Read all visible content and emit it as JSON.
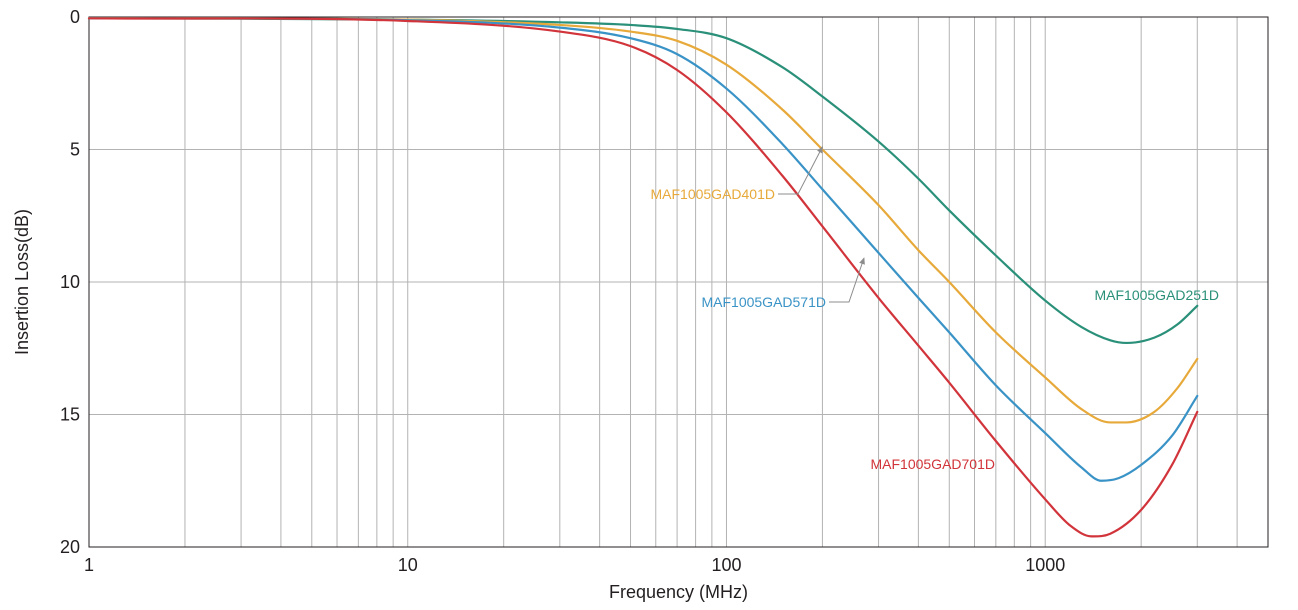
{
  "chart_data": {
    "type": "line",
    "title": "",
    "xlabel": "Frequency (MHz)",
    "ylabel": "Insertion Loss(dB)",
    "x_scale": "log",
    "xlim": [
      1,
      5000
    ],
    "ylim": [
      0,
      20
    ],
    "y_inverted": true,
    "grid": true,
    "x_ticks": [
      {
        "value": 1,
        "label": "1"
      },
      {
        "value": 10,
        "label": "10"
      },
      {
        "value": 100,
        "label": "100"
      },
      {
        "value": 1000,
        "label": "1000"
      }
    ],
    "y_ticks": [
      {
        "value": 0,
        "label": "0"
      },
      {
        "value": 5,
        "label": "5"
      },
      {
        "value": 10,
        "label": "10"
      },
      {
        "value": 15,
        "label": "15"
      },
      {
        "value": 20,
        "label": "20"
      }
    ],
    "series": [
      {
        "name": "MAF1005GAD251D",
        "color": "#2a9079",
        "points": [
          [
            1,
            0.05
          ],
          [
            10,
            0.1
          ],
          [
            30,
            0.2
          ],
          [
            50,
            0.3
          ],
          [
            70,
            0.45
          ],
          [
            100,
            0.8
          ],
          [
            150,
            1.9
          ],
          [
            200,
            3.0
          ],
          [
            300,
            4.7
          ],
          [
            400,
            6.1
          ],
          [
            500,
            7.3
          ],
          [
            700,
            9.0
          ],
          [
            1000,
            10.7
          ],
          [
            1300,
            11.7
          ],
          [
            1600,
            12.2
          ],
          [
            1800,
            12.3
          ],
          [
            2200,
            12.1
          ],
          [
            2600,
            11.6
          ],
          [
            3000,
            10.9
          ]
        ]
      },
      {
        "name": "MAF1005GAD401D",
        "color": "#e7a93a",
        "points": [
          [
            1,
            0.05
          ],
          [
            10,
            0.1
          ],
          [
            30,
            0.3
          ],
          [
            50,
            0.55
          ],
          [
            70,
            0.9
          ],
          [
            100,
            1.8
          ],
          [
            150,
            3.5
          ],
          [
            200,
            5.0
          ],
          [
            300,
            7.1
          ],
          [
            400,
            8.8
          ],
          [
            500,
            10.0
          ],
          [
            700,
            11.9
          ],
          [
            1000,
            13.6
          ],
          [
            1300,
            14.8
          ],
          [
            1600,
            15.3
          ],
          [
            1800,
            15.3
          ],
          [
            2200,
            14.9
          ],
          [
            2600,
            14.0
          ],
          [
            3000,
            12.9
          ]
        ]
      },
      {
        "name": "MAF1005GAD571D",
        "color": "#3a93c6",
        "points": [
          [
            1,
            0.05
          ],
          [
            10,
            0.12
          ],
          [
            30,
            0.4
          ],
          [
            50,
            0.8
          ],
          [
            70,
            1.4
          ],
          [
            100,
            2.7
          ],
          [
            150,
            4.8
          ],
          [
            200,
            6.5
          ],
          [
            300,
            8.9
          ],
          [
            400,
            10.6
          ],
          [
            500,
            11.9
          ],
          [
            700,
            13.9
          ],
          [
            1000,
            15.7
          ],
          [
            1300,
            17.0
          ],
          [
            1500,
            17.5
          ],
          [
            1700,
            17.4
          ],
          [
            2000,
            16.9
          ],
          [
            2500,
            15.8
          ],
          [
            3000,
            14.3
          ]
        ]
      },
      {
        "name": "MAF1005GAD701D",
        "color": "#d1343a",
        "points": [
          [
            1,
            0.05
          ],
          [
            10,
            0.15
          ],
          [
            30,
            0.55
          ],
          [
            50,
            1.1
          ],
          [
            70,
            2.0
          ],
          [
            100,
            3.6
          ],
          [
            150,
            6.0
          ],
          [
            200,
            7.9
          ],
          [
            300,
            10.6
          ],
          [
            400,
            12.4
          ],
          [
            500,
            13.8
          ],
          [
            700,
            16.0
          ],
          [
            1000,
            18.2
          ],
          [
            1200,
            19.2
          ],
          [
            1400,
            19.6
          ],
          [
            1600,
            19.5
          ],
          [
            2000,
            18.6
          ],
          [
            2500,
            16.9
          ],
          [
            3000,
            14.9
          ]
        ]
      }
    ],
    "annotations": [
      {
        "series": "MAF1005GAD401D",
        "text": "MAF1005GAD401D",
        "color": "#e7a93a",
        "arrow": true,
        "arrow_to": [
          200,
          4.9
        ]
      },
      {
        "series": "MAF1005GAD571D",
        "text": "MAF1005GAD571D",
        "color": "#3a93c6",
        "arrow": true,
        "arrow_to": [
          270,
          9.1
        ]
      },
      {
        "series": "MAF1005GAD251D",
        "text": "MAF1005GAD251D",
        "color": "#2a9079",
        "arrow": false
      },
      {
        "series": "MAF1005GAD701D",
        "text": "MAF1005GAD701D",
        "color": "#d1343a",
        "arrow": false
      }
    ]
  }
}
